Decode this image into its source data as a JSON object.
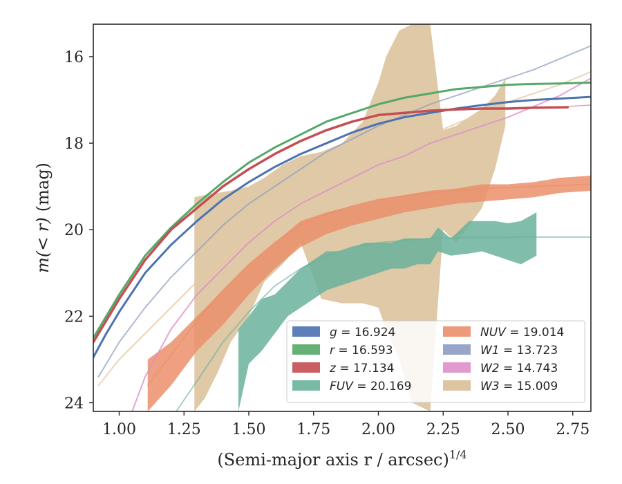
{
  "chart_data": {
    "type": "line",
    "xlabel_main": "(Semi-major axis r / arcsec)",
    "xlabel_exp": "1/4",
    "ylabel_main": "m(< r)",
    "ylabel_unit": "(mag)",
    "xlim": [
      0.9,
      2.82
    ],
    "ylim": [
      24.2,
      15.25
    ],
    "y_inverted": true,
    "xticks": [
      {
        "value": 1.0,
        "label": "1.00"
      },
      {
        "value": 1.25,
        "label": "1.25"
      },
      {
        "value": 1.5,
        "label": "1.50"
      },
      {
        "value": 1.75,
        "label": "1.75"
      },
      {
        "value": 2.0,
        "label": "2.00"
      },
      {
        "value": 2.25,
        "label": "2.25"
      },
      {
        "value": 2.5,
        "label": "2.50"
      },
      {
        "value": 2.75,
        "label": "2.75"
      }
    ],
    "yticks": [
      {
        "value": 16,
        "label": "16"
      },
      {
        "value": 18,
        "label": "18"
      },
      {
        "value": 20,
        "label": "20"
      },
      {
        "value": 22,
        "label": "22"
      },
      {
        "value": 24,
        "label": "24"
      }
    ],
    "grid": false,
    "legend_position": "lower-right",
    "legend_columns": 2,
    "legend": [
      {
        "band": "g",
        "value": "16.924",
        "color": "#4c72b0"
      },
      {
        "band": "r",
        "value": "16.593",
        "color": "#55a868"
      },
      {
        "band": "z",
        "value": "17.134",
        "color": "#c44e52"
      },
      {
        "band": "FUV",
        "value": "20.169",
        "color": "#6ab29c"
      },
      {
        "band": "NUV",
        "value": "19.014",
        "color": "#eb8f6b"
      },
      {
        "band": "W1",
        "value": "13.723",
        "color": "#8c9bc2"
      },
      {
        "band": "W2",
        "value": "14.743",
        "color": "#dd8fc8"
      },
      {
        "band": "W3",
        "value": "15.009",
        "color": "#d9bf98"
      }
    ],
    "series": [
      {
        "name": "W3",
        "kind": "band",
        "color": "#d9bf98",
        "opacity": 0.85,
        "x": [
          1.29,
          1.33,
          1.38,
          1.43,
          1.5,
          1.56,
          1.63,
          1.7,
          1.78,
          1.86,
          1.94,
          2.0,
          2.03,
          2.08,
          2.13,
          2.2,
          2.25,
          2.3,
          2.35,
          2.4,
          2.45,
          2.49
        ],
        "y_low": [
          24.2,
          23.9,
          23.3,
          22.6,
          22.0,
          21.2,
          20.8,
          20.3,
          21.6,
          21.7,
          21.7,
          21.8,
          22.3,
          23.0,
          24.0,
          24.2,
          20.0,
          20.3,
          19.9,
          19.5,
          18.6,
          17.6
        ],
        "y_high": [
          19.25,
          19.2,
          19.15,
          19.1,
          19.0,
          18.8,
          18.5,
          18.3,
          18.2,
          18.0,
          17.5,
          16.6,
          16.0,
          15.4,
          15.25,
          15.25,
          17.7,
          17.6,
          17.4,
          17.2,
          16.9,
          16.5
        ]
      },
      {
        "name": "NUV",
        "kind": "band",
        "color": "#eb8f6b",
        "opacity": 0.85,
        "x": [
          1.11,
          1.2,
          1.3,
          1.4,
          1.5,
          1.6,
          1.7,
          1.8,
          1.9,
          2.0,
          2.1,
          2.2,
          2.3,
          2.4,
          2.5,
          2.6,
          2.7,
          2.82
        ],
        "y_low": [
          24.2,
          23.6,
          22.8,
          22.2,
          21.5,
          20.9,
          20.4,
          20.1,
          19.9,
          19.75,
          19.6,
          19.5,
          19.4,
          19.35,
          19.3,
          19.25,
          19.15,
          19.1
        ],
        "y_high": [
          23.0,
          22.6,
          22.0,
          21.4,
          20.8,
          20.3,
          19.8,
          19.6,
          19.45,
          19.3,
          19.2,
          19.1,
          19.05,
          18.95,
          18.95,
          18.9,
          18.8,
          18.75
        ]
      },
      {
        "name": "FUV",
        "kind": "band",
        "color": "#6ab29c",
        "opacity": 0.85,
        "x": [
          1.46,
          1.5,
          1.55,
          1.6,
          1.65,
          1.7,
          1.75,
          1.8,
          1.85,
          1.9,
          1.95,
          2.0,
          2.05,
          2.1,
          2.15,
          2.2,
          2.23,
          2.28,
          2.35,
          2.4,
          2.45,
          2.5,
          2.55,
          2.61
        ],
        "y_low": [
          24.2,
          23.1,
          22.8,
          22.4,
          22.0,
          21.8,
          21.6,
          21.4,
          21.3,
          21.2,
          21.1,
          21.0,
          20.9,
          20.9,
          20.8,
          20.8,
          20.5,
          20.6,
          20.55,
          20.5,
          20.6,
          20.7,
          20.8,
          20.6
        ],
        "y_high": [
          22.3,
          22.0,
          21.6,
          21.5,
          21.2,
          20.9,
          20.7,
          20.5,
          20.5,
          20.4,
          20.3,
          20.3,
          20.3,
          20.2,
          20.2,
          20.2,
          19.95,
          20.2,
          19.8,
          19.8,
          19.8,
          19.85,
          19.8,
          19.6
        ]
      },
      {
        "name": "W1",
        "kind": "line",
        "color": "#8c9bc2",
        "opacity": 0.7,
        "width": 2,
        "x": [
          0.92,
          1.0,
          1.1,
          1.2,
          1.3,
          1.4,
          1.5,
          1.6,
          1.7,
          1.8,
          1.9,
          2.0,
          2.1,
          2.2,
          2.3,
          2.4,
          2.5,
          2.6,
          2.7,
          2.82
        ],
        "y": [
          23.4,
          22.6,
          21.8,
          21.1,
          20.5,
          19.9,
          19.4,
          19.0,
          18.6,
          18.2,
          17.9,
          17.6,
          17.35,
          17.1,
          16.9,
          16.7,
          16.5,
          16.3,
          16.05,
          15.75
        ]
      },
      {
        "name": "W2",
        "kind": "line",
        "color": "#dd8fc8",
        "opacity": 0.8,
        "width": 2,
        "x": [
          1.05,
          1.1,
          1.2,
          1.3,
          1.4,
          1.5,
          1.6,
          1.7,
          1.8,
          1.9,
          2.0,
          2.1,
          2.2,
          2.3,
          2.4,
          2.5,
          2.6,
          2.7,
          2.82
        ],
        "y": [
          24.2,
          23.4,
          22.3,
          21.5,
          20.9,
          20.3,
          19.8,
          19.4,
          19.1,
          18.8,
          18.5,
          18.3,
          18.0,
          17.8,
          17.6,
          17.4,
          17.15,
          16.9,
          16.5
        ]
      },
      {
        "name": "W3 fit",
        "kind": "line",
        "color": "#e8c9a8",
        "opacity": 0.8,
        "width": 2,
        "x": [
          0.92,
          1.0,
          1.1,
          1.2,
          1.3,
          1.4,
          1.5,
          1.6,
          1.7,
          1.8,
          1.9,
          2.0,
          2.1,
          2.2,
          2.3,
          2.4,
          2.5,
          2.6,
          2.7,
          2.82
        ],
        "y": [
          23.6,
          23.0,
          22.4,
          21.8,
          21.2,
          20.7,
          20.2,
          19.75,
          19.35,
          19.0,
          18.65,
          18.35,
          18.05,
          17.8,
          17.55,
          17.3,
          17.05,
          16.85,
          16.65,
          16.35
        ]
      },
      {
        "name": "NUV fit",
        "kind": "line",
        "color": "#eb8f6b",
        "opacity": 0.6,
        "width": 2,
        "x": [
          1.11,
          1.2,
          1.3,
          1.4,
          1.5,
          1.6,
          1.7,
          1.8,
          1.9,
          2.0,
          2.2,
          2.4,
          2.6,
          2.82
        ],
        "y": [
          23.6,
          22.9,
          22.1,
          21.4,
          20.8,
          20.3,
          19.9,
          19.65,
          19.45,
          19.3,
          19.15,
          19.05,
          19.0,
          18.95
        ]
      },
      {
        "name": "FUV fit",
        "kind": "line",
        "color": "#6ab29c",
        "opacity": 0.6,
        "width": 2,
        "x": [
          1.22,
          1.3,
          1.4,
          1.5,
          1.6,
          1.7,
          1.8,
          1.9,
          2.0,
          2.1,
          2.2,
          2.4,
          2.6,
          2.82
        ],
        "y": [
          24.2,
          23.5,
          22.6,
          21.9,
          21.3,
          20.9,
          20.6,
          20.4,
          20.3,
          20.25,
          20.2,
          20.18,
          20.17,
          20.17
        ]
      },
      {
        "name": "g",
        "kind": "line",
        "color": "#4c72b0",
        "opacity": 1,
        "width": 3,
        "x": [
          0.9,
          0.95,
          1.0,
          1.1,
          1.2,
          1.3,
          1.4,
          1.5,
          1.6,
          1.7,
          1.8,
          1.9,
          2.0,
          2.1,
          2.2,
          2.3,
          2.4,
          2.5,
          2.6,
          2.7,
          2.82
        ],
        "y": [
          22.95,
          22.4,
          21.9,
          21.0,
          20.35,
          19.8,
          19.3,
          18.9,
          18.55,
          18.25,
          18.0,
          17.75,
          17.55,
          17.4,
          17.3,
          17.2,
          17.12,
          17.05,
          17.0,
          16.97,
          16.93
        ]
      },
      {
        "name": "r",
        "kind": "line",
        "color": "#55a868",
        "opacity": 1,
        "width": 3,
        "x": [
          0.9,
          0.95,
          1.0,
          1.1,
          1.2,
          1.3,
          1.4,
          1.5,
          1.6,
          1.7,
          1.8,
          1.9,
          2.0,
          2.1,
          2.2,
          2.3,
          2.4,
          2.5,
          2.6,
          2.7,
          2.82
        ],
        "y": [
          22.5,
          22.0,
          21.5,
          20.6,
          19.95,
          19.4,
          18.9,
          18.45,
          18.1,
          17.8,
          17.5,
          17.3,
          17.1,
          16.95,
          16.85,
          16.75,
          16.7,
          16.65,
          16.63,
          16.62,
          16.6
        ]
      },
      {
        "name": "z",
        "kind": "line",
        "color": "#c44e52",
        "opacity": 1,
        "width": 3.5,
        "x": [
          0.9,
          0.95,
          1.0,
          1.1,
          1.2,
          1.3,
          1.4,
          1.5,
          1.6,
          1.7,
          1.8,
          1.9,
          2.0,
          2.1,
          2.2,
          2.3,
          2.4,
          2.5,
          2.6,
          2.73
        ],
        "y": [
          22.6,
          22.1,
          21.6,
          20.7,
          20.0,
          19.5,
          19.0,
          18.6,
          18.25,
          17.95,
          17.7,
          17.5,
          17.35,
          17.3,
          17.25,
          17.22,
          17.2,
          17.2,
          17.18,
          17.17
        ]
      },
      {
        "name": "z fit",
        "kind": "line",
        "color": "#c44e52",
        "opacity": 0.5,
        "width": 1.5,
        "x": [
          2.73,
          2.82
        ],
        "y": [
          17.15,
          17.12
        ]
      }
    ]
  }
}
